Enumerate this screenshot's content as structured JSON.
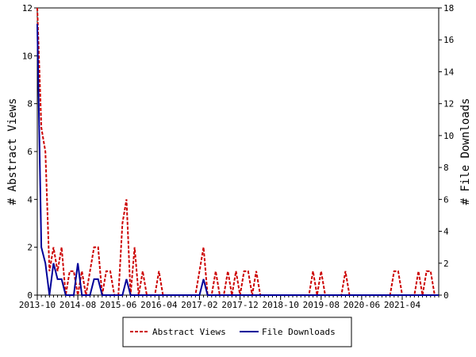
{
  "chart_data": {
    "type": "line",
    "title": "",
    "xlabel": "",
    "ylabel_left": "# Abstract Views",
    "ylabel_right": "# File Downloads",
    "ylim_left": [
      0,
      12
    ],
    "ylim_right": [
      0,
      18
    ],
    "yticks_left": [
      "0",
      "2",
      "4",
      "6",
      "8",
      "10",
      "12"
    ],
    "yticks_right": [
      "0",
      "2",
      "4",
      "6",
      "8",
      "10",
      "12",
      "14",
      "16",
      "18"
    ],
    "x_tick_labels": [
      "2013-10",
      "2014-08",
      "2015-06",
      "2016-04",
      "2017-02",
      "2017-12",
      "2018-10",
      "2019-08",
      "2020-06",
      "2021-04"
    ],
    "x_tick_step_months": 10,
    "x_start": "2013-10",
    "grid": false,
    "legend_position": "bottom",
    "colors": {
      "abstract_views": "#cc0000",
      "file_downloads": "#000099"
    },
    "series": [
      {
        "name": "Abstract Views",
        "axis": "left",
        "style": "dashed",
        "values": [
          12,
          7,
          6,
          1,
          2,
          1,
          2,
          0,
          1,
          1,
          0,
          1,
          0,
          1,
          2,
          2,
          0,
          1,
          1,
          0,
          0,
          3,
          4,
          0,
          2,
          0,
          1,
          0,
          0,
          0,
          1,
          0,
          0,
          0,
          0,
          0,
          0,
          0,
          0,
          0,
          1,
          2,
          0,
          0,
          1,
          0,
          0,
          1,
          0,
          1,
          0,
          1,
          1,
          0,
          1,
          0,
          0,
          0,
          0,
          0,
          0,
          0,
          0,
          0,
          0,
          0,
          0,
          0,
          1,
          0,
          1,
          0,
          0,
          0,
          0,
          0,
          1,
          0,
          0,
          0,
          0,
          0,
          0,
          0,
          0,
          0,
          0,
          0,
          1,
          1,
          0,
          0,
          0,
          0,
          1,
          0,
          1,
          1,
          0,
          0
        ]
      },
      {
        "name": "File Downloads",
        "axis": "right",
        "style": "solid",
        "values": [
          17,
          3,
          2,
          0,
          2,
          1,
          1,
          0,
          0,
          0,
          2,
          0,
          0,
          0,
          1,
          1,
          0,
          0,
          0,
          0,
          0,
          0,
          1,
          0,
          0,
          0,
          0,
          0,
          0,
          0,
          0,
          0,
          0,
          0,
          0,
          0,
          0,
          0,
          0,
          0,
          0,
          1,
          0,
          0,
          0,
          0,
          0,
          0,
          0,
          0,
          0,
          0,
          0,
          0,
          0,
          0,
          0,
          0,
          0,
          0,
          0,
          0,
          0,
          0,
          0,
          0,
          0,
          0,
          0,
          0,
          0,
          0,
          0,
          0,
          0,
          0,
          0,
          0,
          0,
          0,
          0,
          0,
          0,
          0,
          0,
          0,
          0,
          0,
          0,
          0,
          0,
          0,
          0,
          0,
          0,
          0,
          0,
          0,
          0,
          0
        ]
      }
    ]
  }
}
